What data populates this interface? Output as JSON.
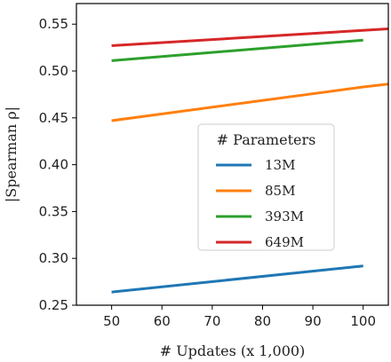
{
  "chart_data": {
    "type": "line",
    "title": "",
    "xlabel": "# Updates (x 1,000)",
    "ylabel": "|Spearman ρ|",
    "xlim": [
      43,
      105
    ],
    "ylim": [
      0.25,
      0.572
    ],
    "xticks": [
      50,
      60,
      70,
      80,
      90,
      100
    ],
    "yticks": [
      0.25,
      0.3,
      0.35,
      0.4,
      0.45,
      0.5,
      0.55
    ],
    "xtick_labels": [
      "50",
      "60",
      "70",
      "80",
      "90",
      "100"
    ],
    "ytick_labels": [
      "0.25",
      "0.30",
      "0.35",
      "0.40",
      "0.45",
      "0.50",
      "0.55"
    ],
    "grid": false,
    "legend": {
      "title": "# Parameters",
      "placement": "center-right"
    },
    "series": [
      {
        "name": "13M",
        "color": "#1f77b4",
        "x": [
          50,
          100
        ],
        "y": [
          0.264,
          0.292
        ]
      },
      {
        "name": "85M",
        "color": "#ff7f0e",
        "x": [
          50,
          100,
          105
        ],
        "y": [
          0.447,
          0.483,
          0.486
        ]
      },
      {
        "name": "393M",
        "color": "#2ca02c",
        "x": [
          50,
          100
        ],
        "y": [
          0.511,
          0.533
        ]
      },
      {
        "name": "649M",
        "color": "#d62728",
        "x": [
          50,
          105
        ],
        "y": [
          0.527,
          0.545
        ]
      }
    ]
  }
}
